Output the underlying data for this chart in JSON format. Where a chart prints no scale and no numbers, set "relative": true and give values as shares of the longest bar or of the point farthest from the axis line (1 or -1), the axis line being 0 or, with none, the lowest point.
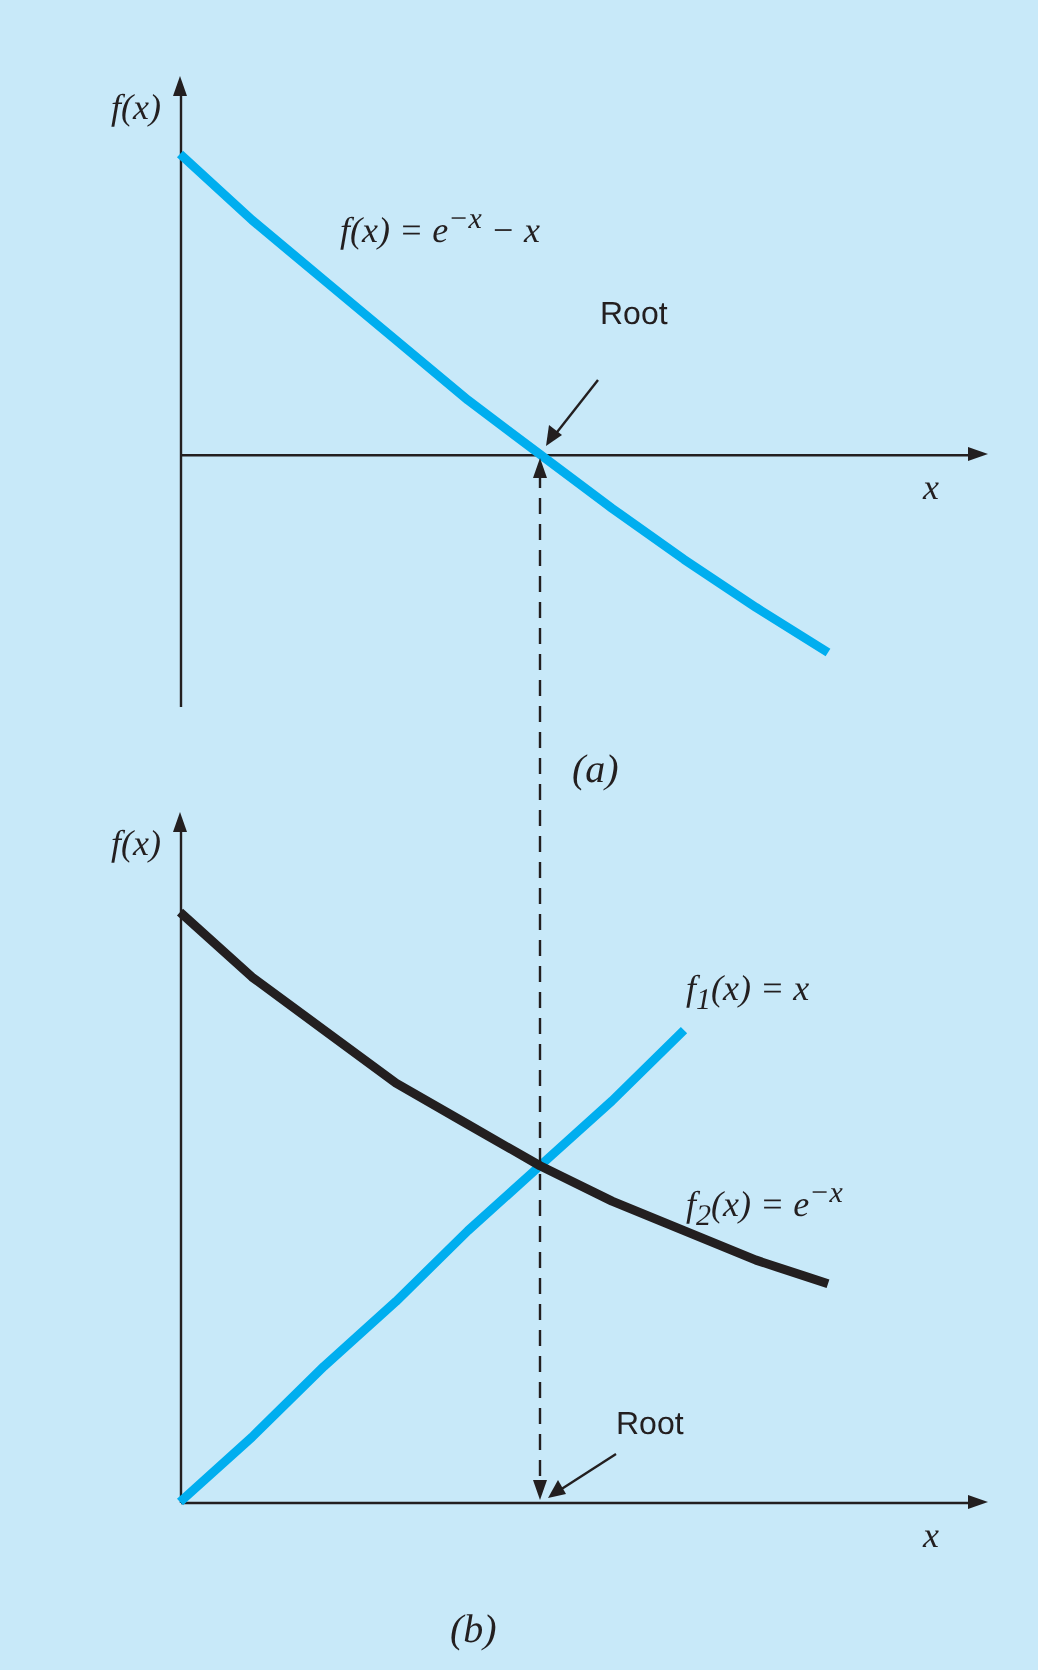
{
  "chart_data": [
    {
      "type": "line",
      "title": "(a)",
      "xlabel": "x",
      "ylabel": "f(x)",
      "relative": true,
      "categories": [
        null,
        null,
        null,
        null,
        null,
        null,
        null,
        null,
        null,
        null,
        null,
        null
      ],
      "series": [
        {
          "name": "f(x) = e$^{−x}$ − x",
          "color": "#00aeef",
          "values": [
            1,
            0.78,
            0.58,
            0.38,
            0.18,
            0,
            -0.18,
            -0.35,
            -0.51,
            -0.66,
            null,
            null
          ]
        }
      ],
      "annotations": [
        "Root"
      ]
    },
    {
      "type": "line",
      "title": "(b)",
      "xlabel": "x",
      "ylabel": "f(x)",
      "relative": true,
      "categories": [
        null,
        null,
        null,
        null,
        null,
        null,
        null,
        null,
        null,
        null,
        null,
        null
      ],
      "series": [
        {
          "name": "f$_{1}$(x) = x",
          "color": "#00aeef",
          "values": [
            0,
            0.11,
            0.23,
            0.34,
            0.46,
            0.57,
            0.68,
            0.8,
            null,
            null,
            null,
            null
          ]
        },
        {
          "name": "f$_{2}$(x) = e$^{−x}$",
          "color": "#231f20",
          "values": [
            1,
            0.89,
            0.8,
            0.71,
            0.64,
            0.57,
            0.51,
            0.46,
            0.41,
            0.37,
            null,
            null
          ]
        }
      ],
      "annotations": [
        "Root"
      ]
    }
  ]
}
